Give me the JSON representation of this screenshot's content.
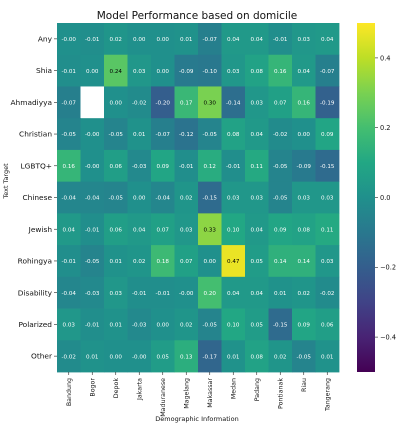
{
  "chart_data": {
    "type": "heatmap",
    "title": "Model Performance based on domicile",
    "xlabel": "Demographic Information",
    "ylabel": "Text Target",
    "columns": [
      "Bandung",
      "Bogor",
      "Depok",
      "Jakarta",
      "Maduranese",
      "Magelang",
      "Makassar",
      "Medan",
      "Padang",
      "Pontianak",
      "Riau",
      "Tangerang"
    ],
    "rows": [
      "Any",
      "Shia",
      "Ahmadiyya",
      "Christian",
      "LGBTQ+",
      "Chinese",
      "Jewish",
      "Rohingya",
      "Disability",
      "Polarized",
      "Other"
    ],
    "values": [
      [
        -0.0,
        -0.01,
        0.02,
        0.0,
        0.0,
        0.01,
        -0.07,
        0.04,
        0.04,
        -0.01,
        0.03,
        0.04
      ],
      [
        -0.01,
        0.0,
        0.24,
        0.03,
        0.0,
        -0.09,
        -0.1,
        0.03,
        0.08,
        0.16,
        0.04,
        -0.07
      ],
      [
        -0.07,
        null,
        0.0,
        -0.02,
        -0.2,
        0.17,
        0.3,
        -0.14,
        0.03,
        0.07,
        0.16,
        -0.19
      ],
      [
        -0.05,
        -0.0,
        -0.05,
        0.01,
        -0.07,
        -0.12,
        -0.05,
        0.08,
        0.04,
        -0.02,
        0.0,
        0.09
      ],
      [
        0.16,
        -0.0,
        0.06,
        -0.03,
        0.09,
        -0.01,
        0.12,
        -0.01,
        0.11,
        -0.05,
        -0.09,
        -0.15
      ],
      [
        -0.04,
        -0.04,
        -0.05,
        0.0,
        -0.04,
        0.02,
        -0.15,
        0.03,
        0.03,
        -0.05,
        0.03,
        0.03
      ],
      [
        0.04,
        -0.01,
        0.06,
        0.04,
        0.07,
        0.03,
        0.33,
        0.1,
        0.04,
        0.09,
        0.08,
        0.11
      ],
      [
        -0.01,
        -0.05,
        0.01,
        0.02,
        0.18,
        0.07,
        0.0,
        0.47,
        0.05,
        0.14,
        0.14,
        0.03
      ],
      [
        -0.04,
        -0.03,
        0.03,
        -0.01,
        -0.01,
        -0.0,
        0.2,
        0.04,
        0.04,
        0.01,
        0.02,
        -0.02
      ],
      [
        0.03,
        -0.01,
        0.01,
        -0.03,
        0.0,
        0.02,
        -0.05,
        0.1,
        0.05,
        -0.15,
        0.09,
        0.06
      ],
      [
        -0.02,
        0.01,
        0.0,
        -0.0,
        0.05,
        0.13,
        -0.17,
        0.01,
        0.08,
        0.02,
        -0.05,
        0.01
      ]
    ],
    "labels": [
      [
        "-0.00",
        "-0.01",
        "0.02",
        "0.00",
        "0.00",
        "0.01",
        "-0.07",
        "0.04",
        "0.04",
        "-0.01",
        "0.03",
        "0.04"
      ],
      [
        "-0.01",
        "0.00",
        "0.24",
        "0.03",
        "0.00",
        "-0.09",
        "-0.10",
        "0.03",
        "0.08",
        "0.16",
        "0.04",
        "-0.07"
      ],
      [
        "-0.07",
        "",
        "0.00",
        "-0.02",
        "-0.20",
        "0.17",
        "0.30",
        "-0.14",
        "0.03",
        "0.07",
        "0.16",
        "-0.19"
      ],
      [
        "-0.05",
        "-0.00",
        "-0.05",
        "0.01",
        "-0.07",
        "-0.12",
        "-0.05",
        "0.08",
        "0.04",
        "-0.02",
        "0.00",
        "0.09"
      ],
      [
        "0.16",
        "-0.00",
        "0.06",
        "-0.03",
        "0.09",
        "-0.01",
        "0.12",
        "-0.01",
        "0.11",
        "-0.05",
        "-0.09",
        "-0.15"
      ],
      [
        "-0.04",
        "-0.04",
        "-0.05",
        "0.00",
        "-0.04",
        "0.02",
        "-0.15",
        "0.03",
        "0.03",
        "-0.05",
        "0.03",
        "0.03"
      ],
      [
        "0.04",
        "-0.01",
        "0.06",
        "0.04",
        "0.07",
        "0.03",
        "0.33",
        "0.10",
        "0.04",
        "0.09",
        "0.08",
        "0.11"
      ],
      [
        "-0.01",
        "-0.05",
        "0.01",
        "0.02",
        "0.18",
        "0.07",
        "0.00",
        "0.47",
        "0.05",
        "0.14",
        "0.14",
        "0.03"
      ],
      [
        "-0.04",
        "-0.03",
        "0.03",
        "-0.01",
        "-0.01",
        "-0.00",
        "0.20",
        "0.04",
        "0.04",
        "0.01",
        "0.02",
        "-0.02"
      ],
      [
        "0.03",
        "-0.01",
        "0.01",
        "-0.03",
        "0.00",
        "0.02",
        "-0.05",
        "0.10",
        "0.05",
        "-0.15",
        "0.09",
        "0.06"
      ],
      [
        "-0.02",
        "0.01",
        "0.00",
        "-0.00",
        "0.05",
        "0.13",
        "-0.17",
        "0.01",
        "0.08",
        "0.02",
        "-0.05",
        "0.01"
      ]
    ],
    "missing_color": "#ffffff",
    "colormap": "viridis",
    "vmin": -0.5,
    "vmax": 0.5,
    "colorbar_ticks": [
      0.4,
      0.2,
      0.0,
      -0.2,
      -0.4
    ],
    "colorbar_tick_labels": [
      "0.4",
      "0.2",
      "0.0",
      "−0.2",
      "−0.4"
    ]
  }
}
